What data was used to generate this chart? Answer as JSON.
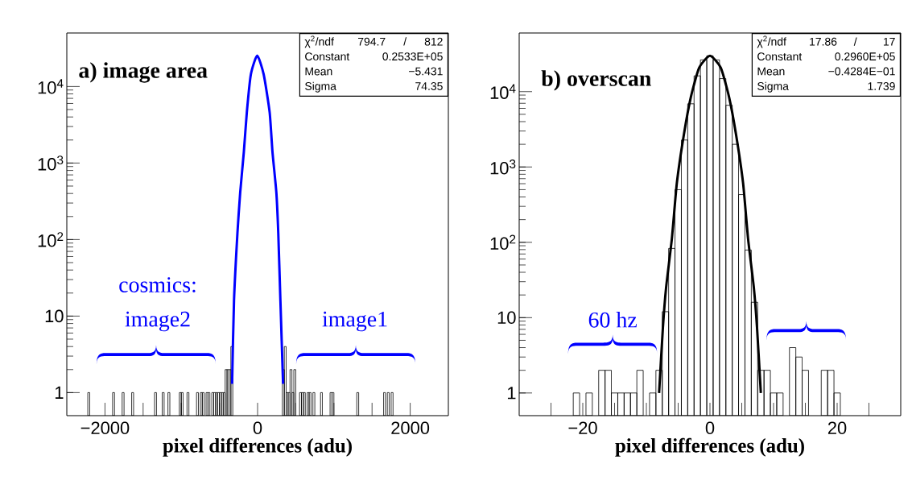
{
  "chart_data": [
    {
      "type": "histogram",
      "title": "a) image area",
      "xlabel": "pixel differences (adu)",
      "log": true,
      "xlim": [
        -2500,
        2500
      ],
      "ylim": [
        0.5,
        50000
      ],
      "xticks": [
        {
          "value": -2000,
          "label": "−2000"
        },
        {
          "value": -1500,
          "label": null
        },
        {
          "value": -1000,
          "label": null
        },
        {
          "value": -500,
          "label": null
        },
        0,
        {
          "value": 500,
          "label": null
        },
        {
          "value": 1000,
          "label": null
        },
        {
          "value": 1500,
          "label": null
        },
        2000
      ],
      "yticks": [
        1,
        10,
        {
          "value": 100,
          "label": "10$^{2}$"
        },
        {
          "value": 1000,
          "label": "10$^{3}$"
        },
        {
          "value": 10000,
          "label": "10$^{4}$"
        }
      ],
      "series": [
        {
          "type": "histogram",
          "color": "#000000",
          "bins": [
            -2225,
            -2200,
            -1900,
            -1875,
            -1775,
            -1750,
            -1650,
            -1625,
            -1350,
            -1325,
            -1250,
            -1225,
            -1175,
            -1150,
            -1025,
            -1000,
            -975,
            -925,
            -900,
            -800,
            -775,
            -750,
            -725,
            -700,
            -675,
            -650,
            -625,
            -600,
            -575,
            -550,
            -525,
            -500,
            -475,
            -450,
            -425,
            -400,
            -375,
            -350,
            -325,
            325,
            350,
            375,
            400,
            425,
            450,
            475,
            500,
            550,
            575,
            600,
            625,
            650,
            675,
            700,
            725,
            750,
            825,
            850,
            950,
            975,
            1000,
            1300,
            1325,
            1650,
            1675,
            1700,
            1725,
            1750,
            1775
          ],
          "values": [
            1,
            null,
            1,
            null,
            1,
            null,
            1,
            null,
            1,
            null,
            1,
            null,
            1,
            null,
            1,
            1,
            null,
            1,
            null,
            1,
            null,
            1,
            1,
            null,
            1,
            1,
            null,
            1,
            1,
            1,
            1,
            1,
            1,
            1,
            2,
            2,
            2,
            4,
            null,
            2,
            4,
            1,
            1,
            2,
            1,
            2,
            null,
            1,
            1,
            1,
            null,
            1,
            1,
            null,
            1,
            null,
            1,
            null,
            1,
            1,
            null,
            1,
            null,
            1,
            null,
            1,
            null,
            1
          ]
        },
        {
          "type": "line",
          "color": "#0000ff",
          "x": [
            -334,
            -309,
            -264,
            -228,
            -180,
            -141,
            -88,
            -5,
            80,
            158,
            195,
            246,
            271,
            299,
            334
          ],
          "values": [
            1.3,
            16,
            122,
            410,
            1400,
            4600,
            14400,
            25300,
            14400,
            4600,
            1400,
            410,
            122,
            16,
            1.3
          ]
        }
      ],
      "annotations": [
        "χ$^{2}$/ndf",
        "794.7",
        "/",
        "812",
        "Constant",
        "0.2533E+05",
        "Mean",
        "−5.431",
        "Sigma",
        "74.35",
        "cosmics:",
        "image2",
        "image1"
      ]
    },
    {
      "type": "histogram",
      "title": "b) overscan",
      "xlabel": "pixel differences (adu)",
      "log": true,
      "xlim": [
        -30,
        30
      ],
      "ylim": [
        0.5,
        60000
      ],
      "xticks": [
        {
          "value": -25,
          "label": null
        },
        {
          "value": -20,
          "label": "−20"
        },
        {
          "value": -15,
          "label": null
        },
        {
          "value": -10,
          "label": null
        },
        {
          "value": -5,
          "label": null
        },
        0,
        {
          "value": 5,
          "label": null
        },
        {
          "value": 10,
          "label": null
        },
        {
          "value": 15,
          "label": null
        },
        20,
        {
          "value": 25,
          "label": null
        }
      ],
      "yticks": [
        1,
        10,
        {
          "value": 100,
          "label": "10$^{2}$"
        },
        {
          "value": 1000,
          "label": "10$^{3}$"
        },
        {
          "value": 10000,
          "label": "10$^{4}$"
        }
      ],
      "series": [
        {
          "type": "histogram",
          "color": "#000000",
          "bins": [
            -21.5,
            -20.5,
            -19.5,
            -18.5,
            -17.5,
            -16.5,
            -15.5,
            -14.5,
            -13.5,
            -12.5,
            -11.5,
            -10.5,
            -9.5,
            -8.5,
            -7.5,
            -6.5,
            -5.5,
            -4.5,
            -3.5,
            -2.5,
            -1.5,
            -0.5,
            0.5,
            1.5,
            2.5,
            3.5,
            4.5,
            5.5,
            6.5,
            7.5,
            8.5,
            9.5,
            10.5,
            11.5,
            12.5,
            13.5,
            14.5,
            15.5,
            16.5,
            17.5,
            18.5,
            19.5,
            20.5
          ],
          "values": [
            1,
            null,
            1,
            null,
            2,
            2,
            1,
            1,
            1,
            1,
            2,
            null,
            1,
            2,
            12,
            83,
            500,
            2280,
            6900,
            16200,
            26400,
            29900,
            26400,
            14900,
            6600,
            2000,
            430,
            79,
            16,
            2,
            2,
            1,
            1,
            null,
            4,
            3,
            2,
            null,
            null,
            2,
            2,
            1
          ]
        },
        {
          "type": "line",
          "color": "#000000",
          "x": [
            -8.0,
            -7.4,
            -6.9,
            -6.0,
            -5.2,
            -4.1,
            -3.0,
            -1.7,
            0,
            1.7,
            3.0,
            4.1,
            5.2,
            6.0,
            6.9,
            7.4,
            8.0
          ],
          "values": [
            1.0,
            7.4,
            25,
            110,
            620,
            2700,
            8500,
            20700,
            29900,
            20700,
            8500,
            2700,
            620,
            110,
            25,
            7.4,
            1.0
          ]
        }
      ],
      "annotations": [
        "χ$^{2}$/ndf",
        "17.86",
        "/",
        "17",
        "Constant",
        "0.2960E+05",
        "Mean",
        "−0.4284E−01",
        "Sigma",
        "1.739",
        "60 hz"
      ]
    }
  ]
}
